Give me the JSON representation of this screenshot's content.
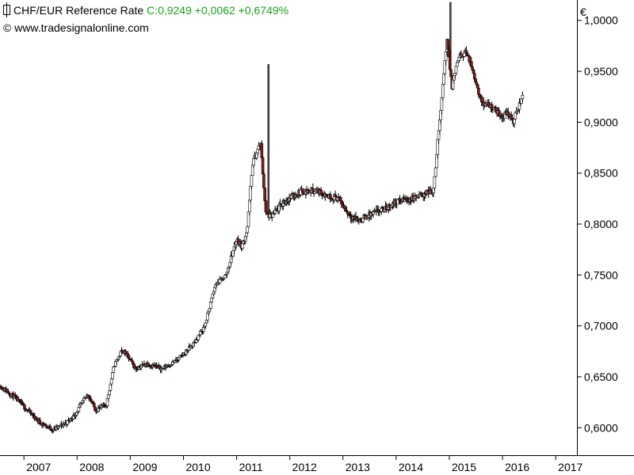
{
  "header": {
    "title": "CHF/EUR Reference Rate",
    "quote": "C:0,9249 +0,0062 +0,6749%",
    "copyright": "© www.tradesignalonline.com",
    "currency": "€"
  },
  "colors": {
    "up_candle": "#ffffff",
    "down_candle": "#8b1a1a",
    "quote_text": "#1aa31a",
    "axis": "#000000"
  },
  "chart_data": {
    "type": "line",
    "style": "candlestick",
    "title": "CHF/EUR Reference Rate",
    "ylabel": "€",
    "ylim": [
      0.573,
      1.02
    ],
    "xlim": [
      2006.55,
      2017.4
    ],
    "y_ticks": [
      "1,0000",
      "0,9500",
      "0,9000",
      "0,8500",
      "0,8000",
      "0,7500",
      "0,7000",
      "0,6500",
      "0,6000"
    ],
    "y_tick_values": [
      1.0,
      0.95,
      0.9,
      0.85,
      0.8,
      0.75,
      0.7,
      0.65,
      0.6
    ],
    "x_ticks": [
      "2007",
      "2008",
      "2009",
      "2010",
      "2011",
      "2012",
      "2013",
      "2014",
      "2015",
      "2016",
      "2017"
    ],
    "x_tick_values": [
      2007,
      2008,
      2009,
      2010,
      2011,
      2012,
      2013,
      2014,
      2015,
      2016,
      2017
    ],
    "grid": false,
    "series": [
      {
        "x": [
          2006.55,
          2006.8,
          2007.05,
          2007.3,
          2007.55,
          2007.8,
          2007.95,
          2008.2,
          2008.35,
          2008.55,
          2008.7,
          2008.85,
          2008.95,
          2009.1,
          2009.3,
          2009.6,
          2009.9,
          2010.2,
          2010.4,
          2010.6,
          2010.8,
          2011.0,
          2011.1,
          2011.2,
          2011.3,
          2011.45,
          2011.55,
          2011.65,
          2011.9,
          2012.2,
          2012.5,
          2012.75,
          2012.9,
          2013.1,
          2013.3,
          2013.5,
          2013.8,
          2014.0,
          2014.3,
          2014.55,
          2014.7,
          2014.95,
          2015.0,
          2015.05,
          2015.15,
          2015.3,
          2015.45,
          2015.6,
          2015.8,
          2016.0,
          2016.1,
          2016.2,
          2016.3,
          2016.38
        ],
        "y": [
          0.641,
          0.631,
          0.618,
          0.605,
          0.598,
          0.605,
          0.612,
          0.633,
          0.617,
          0.623,
          0.662,
          0.676,
          0.67,
          0.658,
          0.663,
          0.658,
          0.667,
          0.683,
          0.7,
          0.74,
          0.75,
          0.785,
          0.778,
          0.795,
          0.86,
          0.88,
          0.81,
          0.807,
          0.822,
          0.832,
          0.833,
          0.827,
          0.826,
          0.81,
          0.803,
          0.809,
          0.815,
          0.822,
          0.825,
          0.83,
          0.833,
          0.98,
          0.958,
          0.935,
          0.96,
          0.97,
          0.95,
          0.92,
          0.915,
          0.905,
          0.91,
          0.9,
          0.915,
          0.9249
        ]
      }
    ]
  }
}
